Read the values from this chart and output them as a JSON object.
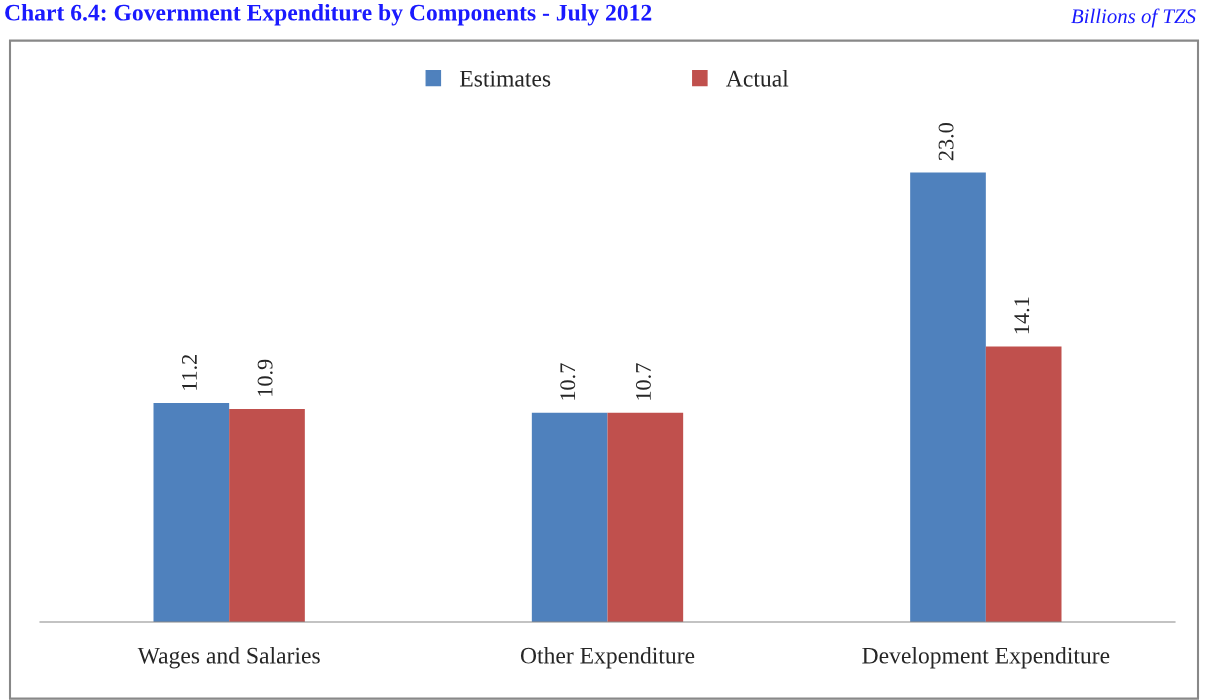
{
  "chart_data": {
    "type": "bar",
    "title": "Chart 6.4: Government Expenditure by Components - July 2012",
    "annotations": [
      "Billions of TZS"
    ],
    "categories": [
      "Wages and Salaries",
      "Other Expenditure",
      "Development Expenditure"
    ],
    "series": [
      {
        "name": "Estimates",
        "color": "#4f81bd",
        "values": [
          11.2,
          10.7,
          23.0
        ],
        "value_labels": [
          "11.2",
          "10.7",
          "23.0"
        ]
      },
      {
        "name": "Actual",
        "color": "#c0504d",
        "values": [
          10.9,
          10.7,
          14.1
        ],
        "value_labels": [
          "10.9",
          "10.7",
          "14.1"
        ]
      }
    ],
    "legend": "top",
    "grid": false
  }
}
